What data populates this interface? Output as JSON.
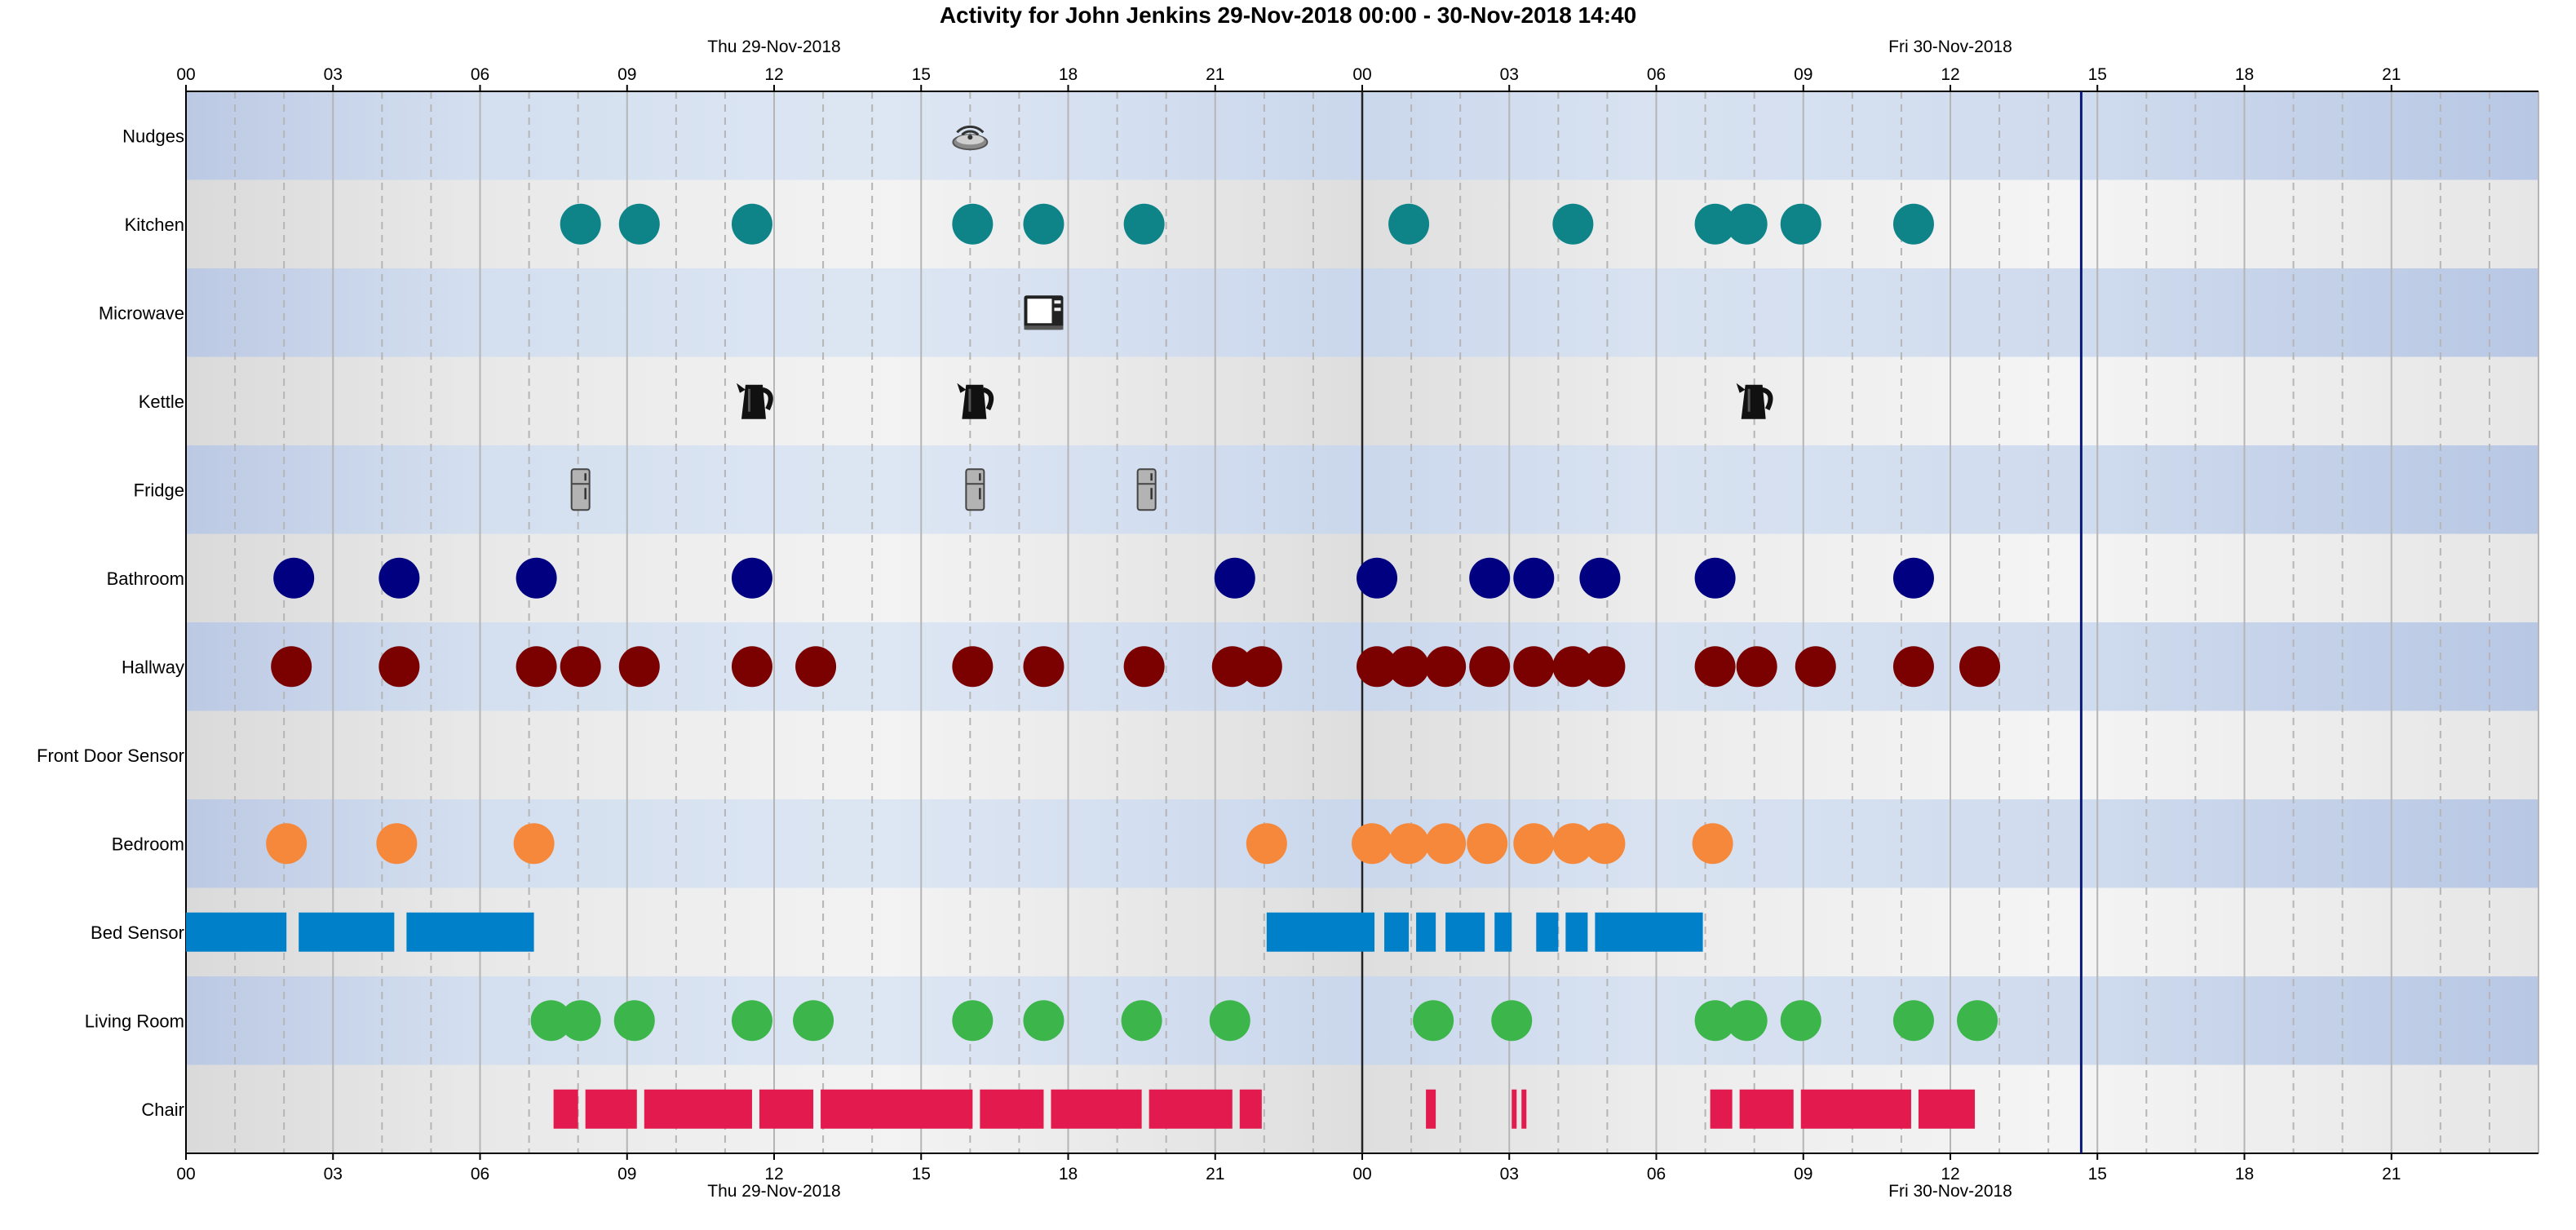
{
  "chart_data": {
    "type": "timeline",
    "title": "Activity for John Jenkins 29-Nov-2018 00:00 - 30-Nov-2018 14:40",
    "x_range_hours": [
      0,
      48
    ],
    "hour_tick_labels": [
      "00",
      "03",
      "06",
      "09",
      "12",
      "15",
      "18",
      "21",
      "00",
      "03",
      "06",
      "09",
      "12",
      "15",
      "18",
      "21"
    ],
    "day_labels": [
      {
        "text": "Thu 29-Nov-2018",
        "hour": 12
      },
      {
        "text": "Fri 30-Nov-2018",
        "hour": 36
      }
    ],
    "midnight_hour": 24,
    "current_time_hour": 38.67,
    "grid": true,
    "rows": [
      {
        "label": "Nudges",
        "type": "icon",
        "icon": "nudge-icon",
        "events": [
          16
        ]
      },
      {
        "label": "Kitchen",
        "type": "dot",
        "color": "#0e8489",
        "events": [
          8.05,
          9.25,
          11.55,
          16.05,
          17.5,
          19.55,
          24.95,
          28.3,
          31.2,
          31.85,
          32.95,
          35.25
        ]
      },
      {
        "label": "Microwave",
        "type": "icon",
        "icon": "microwave-icon",
        "events": [
          17.5
        ]
      },
      {
        "label": "Kettle",
        "type": "icon",
        "icon": "kettle-icon",
        "events": [
          11.6,
          16.1,
          32
        ]
      },
      {
        "label": "Fridge",
        "type": "icon",
        "icon": "fridge-icon",
        "events": [
          8.05,
          16.1,
          19.6
        ]
      },
      {
        "label": "Bathroom",
        "type": "dot",
        "color": "#000080",
        "events": [
          2.2,
          4.35,
          7.15,
          11.55,
          21.4,
          24.3,
          26.6,
          27.5,
          28.85,
          31.2,
          35.25
        ]
      },
      {
        "label": "Hallway",
        "type": "dot",
        "color": "#7b0000",
        "events": [
          2.15,
          4.35,
          7.15,
          8.05,
          9.25,
          11.55,
          12.85,
          16.05,
          17.5,
          19.55,
          21.35,
          21.95,
          24.3,
          24.95,
          25.7,
          26.6,
          27.5,
          28.3,
          28.95,
          31.2,
          32.05,
          33.25,
          35.25,
          36.6
        ]
      },
      {
        "label": "Front Door Sensor",
        "type": "dot",
        "color": "#888888",
        "events": []
      },
      {
        "label": "Bedroom",
        "type": "dot",
        "color": "#f5883a",
        "events": [
          2.05,
          4.3,
          7.1,
          22.05,
          24.2,
          24.95,
          25.7,
          26.55,
          27.5,
          28.3,
          28.95,
          31.15
        ]
      },
      {
        "label": "Bed Sensor",
        "type": "bar",
        "color": "#0080c8",
        "intervals": [
          [
            0,
            2.05
          ],
          [
            2.3,
            4.25
          ],
          [
            4.5,
            7.1
          ],
          [
            22.05,
            24.25
          ],
          [
            24.45,
            24.95
          ],
          [
            25.1,
            25.5
          ],
          [
            25.7,
            26.5
          ],
          [
            26.7,
            27.05
          ],
          [
            27.55,
            28.0
          ],
          [
            28.15,
            28.6
          ],
          [
            28.75,
            30.95
          ]
        ]
      },
      {
        "label": "Living Room",
        "type": "dot",
        "color": "#3cb54a",
        "events": [
          7.45,
          8.05,
          9.15,
          11.55,
          12.8,
          16.05,
          17.5,
          19.5,
          21.3,
          25.45,
          27.05,
          31.2,
          31.85,
          32.95,
          35.25,
          36.55
        ]
      },
      {
        "label": "Chair",
        "type": "bar",
        "color": "#e21a4d",
        "intervals": [
          [
            7.5,
            8.0
          ],
          [
            8.15,
            9.2
          ],
          [
            9.35,
            11.55
          ],
          [
            11.7,
            12.8
          ],
          [
            12.95,
            16.05
          ],
          [
            16.2,
            17.5
          ],
          [
            17.65,
            19.5
          ],
          [
            19.65,
            21.35
          ],
          [
            21.5,
            21.95
          ],
          [
            25.3,
            25.5
          ],
          [
            27.05,
            27.15
          ],
          [
            27.25,
            27.35
          ],
          [
            31.1,
            31.55
          ],
          [
            31.7,
            32.8
          ],
          [
            32.95,
            35.2
          ],
          [
            35.35,
            36.5
          ]
        ]
      }
    ]
  }
}
